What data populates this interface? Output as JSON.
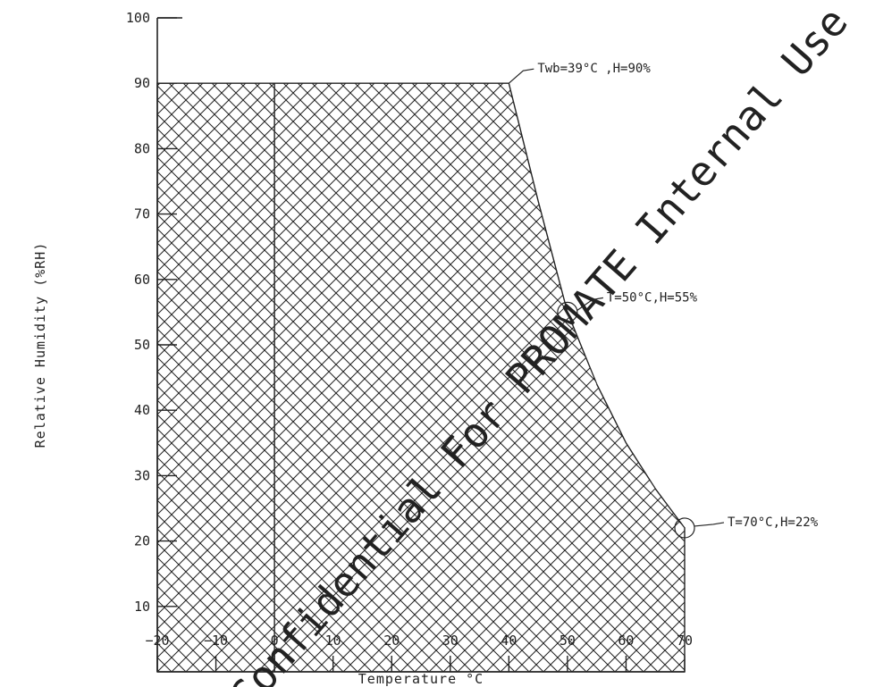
{
  "chart_data": {
    "type": "area",
    "title": "",
    "xlabel": "Temperature °C",
    "ylabel": "Relative Humidity (%RH)",
    "xlim": [
      -20,
      70
    ],
    "ylim": [
      0,
      100
    ],
    "x_ticks": [
      -20,
      -10,
      0,
      10,
      20,
      30,
      40,
      50,
      60,
      70
    ],
    "y_ticks": [
      10,
      20,
      30,
      40,
      50,
      60,
      70,
      80,
      90,
      100
    ],
    "grid": false,
    "fill_pattern": "crosshatch",
    "series": [
      {
        "x": [
          -20,
          -20,
          40,
          45,
          50,
          55,
          60,
          65,
          70,
          70
        ],
        "y": [
          0,
          90,
          90,
          72,
          55,
          44,
          35,
          28,
          22,
          0
        ]
      }
    ],
    "reference_lines": [
      {
        "axis": "x",
        "value": 0
      }
    ],
    "annotations": [
      {
        "text": "Twb=39°C ,H=90%",
        "x": 40,
        "y": 90
      },
      {
        "text": "T=50°C,H=55%",
        "x": 50,
        "y": 55
      },
      {
        "text": "T=70°C,H=22%",
        "x": 70,
        "y": 22
      }
    ]
  },
  "watermark": "Confidential For PROMATE Internal Use Only"
}
